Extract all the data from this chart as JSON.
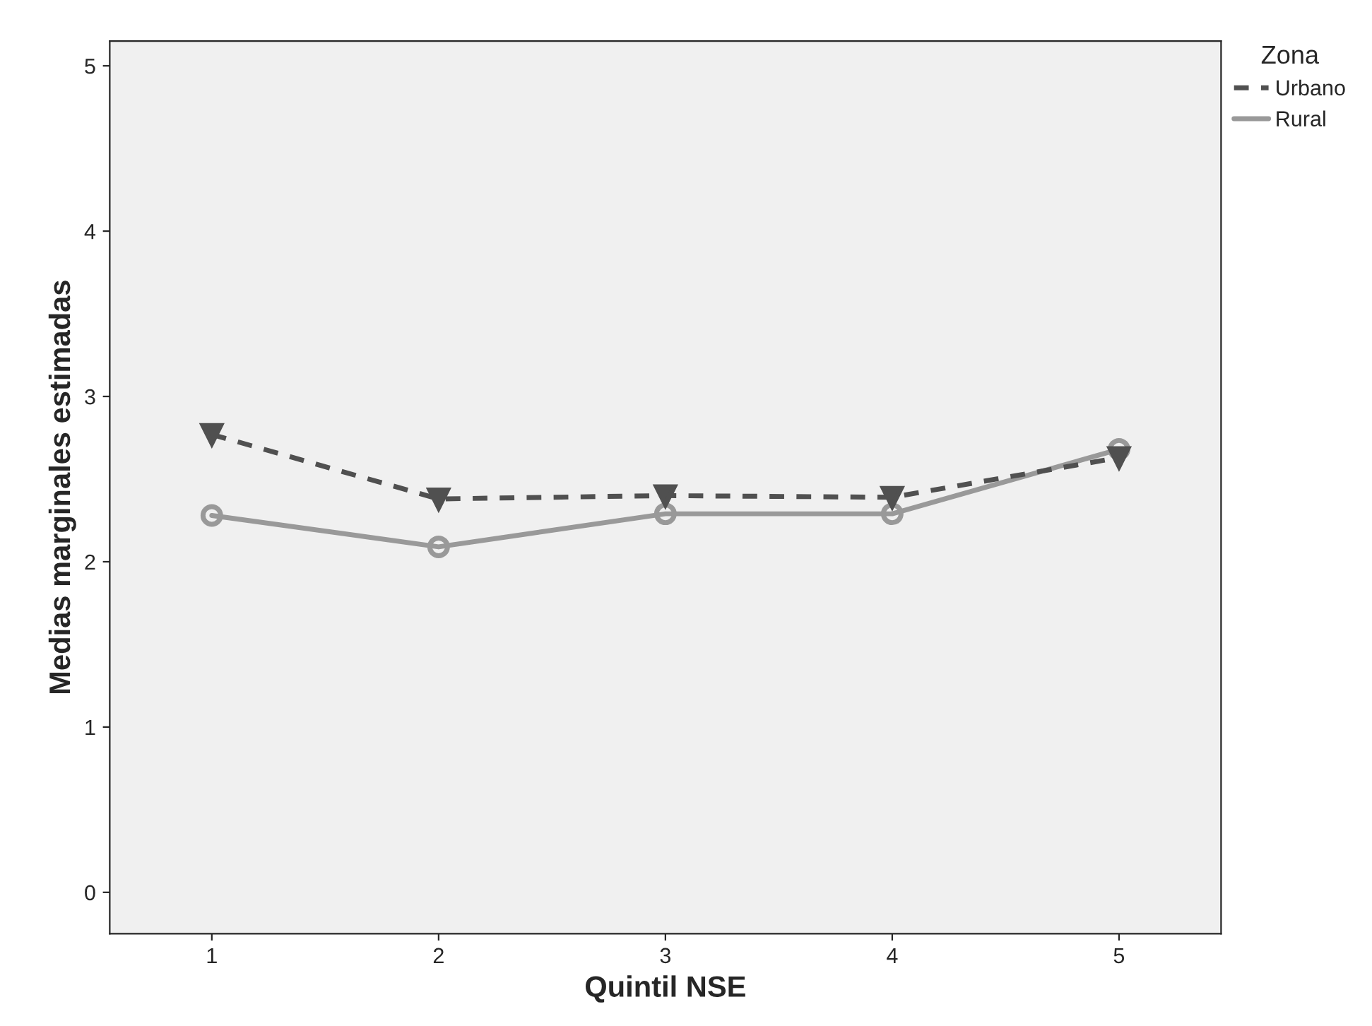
{
  "chart_data": {
    "type": "line",
    "xlabel": "Quintil NSE",
    "ylabel": "Medias marginales estimadas",
    "legend_title": "Zona",
    "legend": "top right",
    "grid": false,
    "categories": [
      "1",
      "2",
      "3",
      "4",
      "5"
    ],
    "ylim": [
      -0.25,
      5.15
    ],
    "yticks": [
      0,
      1,
      2,
      3,
      4,
      5
    ],
    "series": [
      {
        "name": "Urbano",
        "color": "#505050",
        "line_style": "dashed",
        "marker": "triangle",
        "values": [
          2.77,
          2.38,
          2.4,
          2.39,
          2.63
        ]
      },
      {
        "name": "Rural",
        "color": "#999999",
        "line_style": "solid",
        "marker": "circle",
        "values": [
          2.28,
          2.09,
          2.29,
          2.29,
          2.68
        ]
      }
    ]
  }
}
